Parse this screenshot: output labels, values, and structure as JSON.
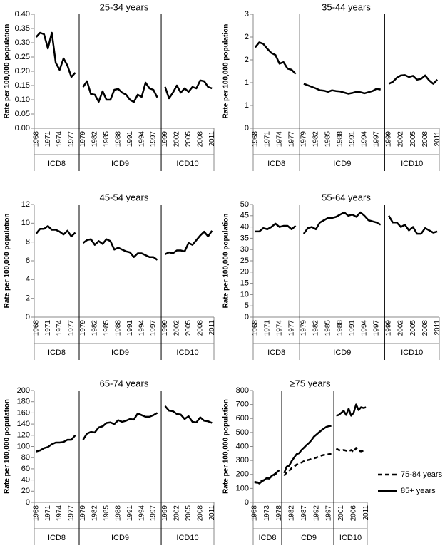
{
  "chart_data": [
    {
      "type": "line",
      "title": "25-34 years",
      "y_label": "Rate per 100,000 population",
      "categories": [
        "1968",
        null,
        null,
        "1971",
        null,
        null,
        "1974",
        null,
        null,
        "1977",
        null,
        null,
        "1979",
        null,
        null,
        "1982",
        null,
        null,
        "1985",
        null,
        null,
        "1988",
        null,
        null,
        "1991",
        null,
        null,
        "1994",
        null,
        null,
        "1997",
        null,
        null,
        "1999",
        null,
        null,
        "2002",
        null,
        null,
        "2005",
        null,
        null,
        "2008",
        null,
        null,
        "2011"
      ],
      "groups": [
        "ICD8",
        "ICD9",
        "ICD10"
      ],
      "color": "#000000",
      "values": [
        0.32,
        0.335,
        0.33,
        0.28,
        0.335,
        0.23,
        0.205,
        0.245,
        0.22,
        0.18,
        0.195,
        null,
        0.145,
        0.165,
        0.12,
        0.118,
        0.093,
        0.13,
        0.1,
        0.1,
        0.135,
        0.138,
        0.125,
        0.118,
        0.1,
        0.092,
        0.118,
        0.11,
        0.16,
        0.14,
        0.135,
        0.108,
        null,
        0.145,
        0.105,
        0.125,
        0.15,
        0.125,
        0.14,
        0.128,
        0.145,
        0.14,
        0.168,
        0.165,
        0.145,
        0.14
      ],
      "ylim": [
        0,
        0.4
      ],
      "yticks": [
        {
          "value": 0,
          "label": "0.00"
        },
        {
          "value": 0.05,
          "label": "0.05"
        },
        {
          "value": 0.1,
          "label": "0.10"
        },
        {
          "value": 0.15,
          "label": "0.15"
        },
        {
          "value": 0.2,
          "label": "0.20"
        },
        {
          "value": 0.25,
          "label": "0.25"
        },
        {
          "value": 0.3,
          "label": "0.30"
        },
        {
          "value": 0.35,
          "label": "0.35"
        },
        {
          "value": 0.4,
          "label": "0.40"
        }
      ],
      "grid": false
    },
    {
      "type": "line",
      "title": "35-44 years",
      "y_label": "Rate per 100,000 population",
      "categories": [
        "1968",
        null,
        null,
        "1971",
        null,
        null,
        "1974",
        null,
        null,
        "1977",
        null,
        null,
        "1979",
        null,
        null,
        "1982",
        null,
        null,
        "1985",
        null,
        null,
        "1988",
        null,
        null,
        "1991",
        null,
        null,
        "1994",
        null,
        null,
        "1997",
        null,
        null,
        "1999",
        null,
        null,
        "2002",
        null,
        null,
        "2005",
        null,
        null,
        "2008",
        null,
        null,
        "2011"
      ],
      "groups": [
        "ICD8",
        "ICD9",
        "ICD10"
      ],
      "color": "#000000",
      "values": [
        2.13,
        2.26,
        2.22,
        2.09,
        1.98,
        1.93,
        1.7,
        1.74,
        1.57,
        1.54,
        1.43,
        null,
        1.17,
        1.13,
        1.09,
        1.05,
        1.0,
        0.99,
        0.96,
        1.0,
        0.98,
        0.97,
        0.94,
        0.91,
        0.93,
        0.96,
        0.95,
        0.92,
        0.95,
        0.98,
        1.04,
        1.02,
        null,
        1.17,
        1.22,
        1.33,
        1.39,
        1.4,
        1.35,
        1.38,
        1.28,
        1.3,
        1.39,
        1.26,
        1.17,
        1.28
      ],
      "ylim": [
        0,
        3
      ],
      "yticks": [
        0,
        {
          "value": 0.6,
          "label": "1"
        },
        {
          "value": 1.2,
          "label": "1"
        },
        {
          "value": 1.8,
          "label": "2"
        },
        {
          "value": 2.4,
          "label": "2"
        },
        3
      ],
      "grid": false
    },
    {
      "type": "line",
      "title": "45-54 years",
      "y_label": "Rate per 100,000 population",
      "categories": [
        "1968",
        null,
        null,
        "1971",
        null,
        null,
        "1974",
        null,
        null,
        "1977",
        null,
        null,
        "1979",
        null,
        null,
        "1982",
        null,
        null,
        "1985",
        null,
        null,
        "1988",
        null,
        null,
        "1991",
        null,
        null,
        "1994",
        null,
        null,
        "1997",
        null,
        null,
        "1999",
        null,
        null,
        "2002",
        null,
        null,
        "2005",
        null,
        null,
        "2008",
        null,
        null,
        "2011"
      ],
      "groups": [
        "ICD8",
        "ICD9",
        "ICD10"
      ],
      "color": "#000000",
      "values": [
        8.9,
        9.4,
        9.4,
        9.7,
        9.3,
        9.3,
        9.1,
        8.8,
        9.2,
        8.6,
        9.0,
        null,
        7.9,
        8.2,
        8.3,
        7.7,
        8.1,
        7.8,
        8.3,
        8.1,
        7.2,
        7.4,
        7.2,
        7.0,
        6.9,
        6.4,
        6.8,
        6.8,
        6.6,
        6.4,
        6.4,
        6.1,
        null,
        6.7,
        6.9,
        6.8,
        7.1,
        7.1,
        7.0,
        7.9,
        7.7,
        8.2,
        8.7,
        9.1,
        8.6,
        9.2
      ],
      "ylim": [
        0,
        12
      ],
      "yticks": [
        0,
        2,
        4,
        6,
        8,
        10,
        12
      ],
      "grid": false
    },
    {
      "type": "line",
      "title": "55-64 years",
      "y_label": "Rate per 100,000 population",
      "categories": [
        "1968",
        null,
        null,
        "1971",
        null,
        null,
        "1974",
        null,
        null,
        "1977",
        null,
        null,
        "1979",
        null,
        null,
        "1982",
        null,
        null,
        "1985",
        null,
        null,
        "1988",
        null,
        null,
        "1991",
        null,
        null,
        "1994",
        null,
        null,
        "1997",
        null,
        null,
        "1999",
        null,
        null,
        "2002",
        null,
        null,
        "2005",
        null,
        null,
        "2008",
        null,
        null,
        "2011"
      ],
      "groups": [
        "ICD8",
        "ICD9",
        "ICD10"
      ],
      "color": "#000000",
      "values": [
        38,
        38,
        39.5,
        39,
        40,
        41.5,
        40,
        40.5,
        40.5,
        39,
        40.5,
        null,
        37,
        39.5,
        40,
        39,
        42,
        43,
        44,
        44,
        44.5,
        45.5,
        46.5,
        45,
        45.5,
        44.5,
        46.5,
        45,
        43,
        42.5,
        42,
        41,
        null,
        45,
        42,
        42,
        40,
        41,
        38.5,
        40,
        37,
        37,
        39.5,
        38.5,
        37.5,
        38
      ],
      "ylim": [
        0,
        50
      ],
      "yticks": [
        0,
        5,
        10,
        15,
        20,
        25,
        30,
        35,
        40,
        45,
        50
      ],
      "grid": false
    },
    {
      "type": "line",
      "title": "65-74 years",
      "y_label": "Rate per 100,000 population",
      "categories": [
        "1968",
        null,
        null,
        "1971",
        null,
        null,
        "1974",
        null,
        null,
        "1977",
        null,
        null,
        "1979",
        null,
        null,
        "1982",
        null,
        null,
        "1985",
        null,
        null,
        "1988",
        null,
        null,
        "1991",
        null,
        null,
        "1994",
        null,
        null,
        "1997",
        null,
        null,
        "1999",
        null,
        null,
        "2002",
        null,
        null,
        "2005",
        null,
        null,
        "2008",
        null,
        null,
        "2011"
      ],
      "groups": [
        "ICD8",
        "ICD9",
        "ICD10"
      ],
      "color": "#000000",
      "values": [
        91,
        93,
        97,
        99,
        104,
        107,
        107,
        108,
        112,
        112,
        120,
        null,
        112,
        123,
        126,
        125,
        134,
        136,
        142,
        143,
        140,
        147,
        144,
        146,
        149,
        148,
        159,
        156,
        153,
        153,
        156,
        160,
        null,
        172,
        164,
        163,
        158,
        157,
        149,
        154,
        144,
        143,
        152,
        146,
        145,
        142
      ],
      "ylim": [
        0,
        200
      ],
      "yticks": [
        0,
        20,
        40,
        60,
        80,
        100,
        120,
        140,
        160,
        180,
        200
      ],
      "grid": false
    },
    {
      "type": "line",
      "title": "≥75 years",
      "y_label": "Rate per 100,000 population",
      "categories": [
        "1968",
        null,
        null,
        null,
        null,
        "1973",
        null,
        null,
        null,
        null,
        "1978",
        null,
        null,
        null,
        null,
        "1982",
        null,
        null,
        null,
        null,
        "1987",
        null,
        null,
        null,
        null,
        "1992",
        null,
        null,
        null,
        null,
        "1997",
        null,
        null,
        null,
        null,
        "2001",
        null,
        null,
        null,
        null,
        "2006",
        null,
        null,
        null,
        null,
        "2011"
      ],
      "groups": [
        "ICD8",
        "ICD9",
        "ICD10"
      ],
      "series": [
        {
          "name": "75-84 years",
          "color": "#000000",
          "dash": true,
          "values": [
            150,
            140,
            145,
            155,
            160,
            165,
            175,
            185,
            195,
            210,
            205,
            null,
            190,
            215,
            225,
            245,
            255,
            270,
            280,
            285,
            295,
            300,
            305,
            310,
            315,
            320,
            330,
            335,
            340,
            340,
            345,
            345,
            null,
            385,
            375,
            370,
            375,
            370,
            365,
            375,
            360,
            390,
            370,
            365,
            370,
            365
          ]
        },
        {
          "name": "85+ years",
          "color": "#000000",
          "dash": false,
          "values": [
            140,
            145,
            135,
            150,
            160,
            175,
            170,
            190,
            200,
            215,
            230,
            null,
            210,
            255,
            262,
            295,
            320,
            345,
            352,
            375,
            392,
            410,
            425,
            445,
            470,
            485,
            500,
            515,
            528,
            540,
            545,
            548,
            null,
            620,
            625,
            640,
            655,
            625,
            670,
            620,
            640,
            700,
            660,
            680,
            675,
            680
          ]
        }
      ],
      "ylim": [
        0,
        800
      ],
      "yticks": [
        0,
        100,
        200,
        300,
        400,
        500,
        600,
        700,
        800
      ],
      "grid": false,
      "legend": "right"
    }
  ]
}
